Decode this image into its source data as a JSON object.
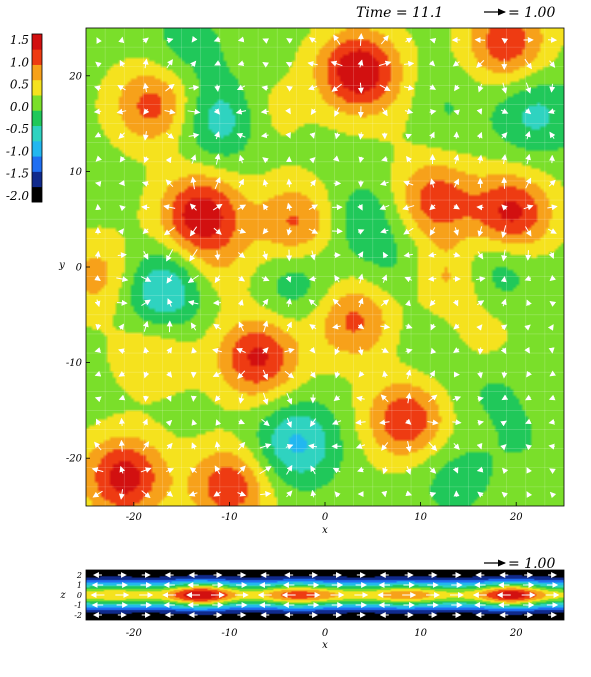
{
  "chart_data": [
    {
      "type": "heatmap",
      "panel": "x-y plane",
      "time_label": "Time = 11.1",
      "vector_scale_label": "= 1.00",
      "xlabel": "x",
      "ylabel": "y",
      "xlim": [
        -25,
        25
      ],
      "ylim": [
        -25,
        25
      ],
      "xticks": [
        -20,
        -10,
        0,
        10,
        20
      ],
      "yticks": [
        -20,
        -10,
        0,
        10,
        20
      ],
      "grid": true,
      "colorbar": {
        "range": [
          -2.0,
          1.5
        ],
        "ticks": [
          "1.5",
          "1.0",
          "0.5",
          "0.0",
          "-0.5",
          "-1.0",
          "-1.5",
          "-2.0"
        ],
        "colors": [
          "#000000",
          "#102a8c",
          "#1f6ff2",
          "#22b7f0",
          "#2fd3c0",
          "#20c85a",
          "#7adf2a",
          "#f5e21e",
          "#f7a11a",
          "#ee3b12",
          "#d21010"
        ]
      },
      "background_level": 0.1,
      "peaks": [
        {
          "x": 3.5,
          "y": 20.5,
          "v": 1.4
        },
        {
          "x": -13,
          "y": 5.5,
          "v": 1.3
        },
        {
          "x": 19.5,
          "y": 5.5,
          "v": 1.2
        },
        {
          "x": -7,
          "y": -9.5,
          "v": 1.15
        },
        {
          "x": -21,
          "y": -22,
          "v": 1.25
        },
        {
          "x": -10,
          "y": -23,
          "v": 1.0
        },
        {
          "x": 8.5,
          "y": -16,
          "v": 1.05
        },
        {
          "x": 11.5,
          "y": 7,
          "v": 0.95
        },
        {
          "x": -18,
          "y": 17,
          "v": 0.9
        },
        {
          "x": 19,
          "y": 23.5,
          "v": 1.0
        },
        {
          "x": -3,
          "y": 4.5,
          "v": 0.85
        },
        {
          "x": 3,
          "y": -5.5,
          "v": 0.85
        },
        {
          "x": 13,
          "y": -1,
          "v": 0.65
        },
        {
          "x": -23.5,
          "y": -1,
          "v": 0.6
        },
        {
          "x": -18,
          "y": -9,
          "v": 0.45
        },
        {
          "x": -7,
          "y": 16,
          "v": 0.4
        },
        {
          "x": 16,
          "y": -8,
          "v": 0.4
        },
        {
          "x": -11,
          "y": 0,
          "v": 0.35
        },
        {
          "x": 9,
          "y": 16,
          "v": 0.25
        },
        {
          "x": 23,
          "y": -18,
          "v": 0.3
        }
      ],
      "troughs": [
        {
          "x": -17,
          "y": -2.5,
          "v": -0.95
        },
        {
          "x": -10.5,
          "y": 15.5,
          "v": -0.85
        },
        {
          "x": -3,
          "y": -18.5,
          "v": -0.9
        },
        {
          "x": 22,
          "y": 16,
          "v": -0.6
        },
        {
          "x": 17.5,
          "y": 0,
          "v": -0.55
        },
        {
          "x": 4,
          "y": 5,
          "v": -0.45
        },
        {
          "x": -3,
          "y": -1.5,
          "v": -0.45
        },
        {
          "x": 11.5,
          "y": 16.5,
          "v": -0.35
        },
        {
          "x": -14.5,
          "y": 23,
          "v": -0.35
        },
        {
          "x": 22,
          "y": -18,
          "v": -0.45
        },
        {
          "x": 13.5,
          "y": -22,
          "v": -0.35
        },
        {
          "x": 17,
          "y": -12,
          "v": -0.3
        },
        {
          "x": 8,
          "y": 0,
          "v": -0.3
        },
        {
          "x": 12,
          "y": -8,
          "v": -0.25
        }
      ]
    },
    {
      "type": "heatmap",
      "panel": "x-z plane",
      "vector_scale_label": "= 1.00",
      "xlabel": "x",
      "ylabel": "z",
      "xlim": [
        -25,
        25
      ],
      "ylim": [
        -2.5,
        2.5
      ],
      "xticks": [
        -20,
        -10,
        0,
        10,
        20
      ],
      "yticks": [
        2,
        1,
        0,
        -1,
        -2
      ],
      "midplane_peaks": [
        {
          "x": -13,
          "v": 1.3
        },
        {
          "x": -3,
          "v": 0.8
        },
        {
          "x": 8.5,
          "v": 0.6
        },
        {
          "x": 19.5,
          "v": 1.2
        },
        {
          "x": 1,
          "v": 0.2
        },
        {
          "x": -22,
          "v": 0.3
        }
      ]
    }
  ]
}
